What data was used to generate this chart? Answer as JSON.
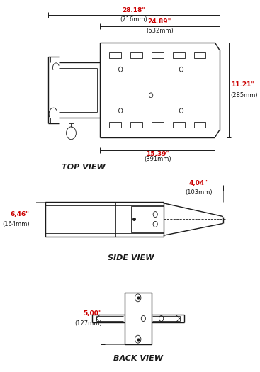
{
  "bg_color": "#ffffff",
  "line_color": "#1a1a1a",
  "dim_color": "#cc0000",
  "title_top_view": "TOP VIEW",
  "title_side_view": "SIDE VIEW",
  "title_back_view": "BACK VIEW",
  "dim_28_18": "28.18\"",
  "dim_716": "(716mm)",
  "dim_24_89": "24.89\"",
  "dim_632": "(632mm)",
  "dim_11_21": "11.21\"",
  "dim_285": "(285mm)",
  "dim_15_39": "15.39\"",
  "dim_391": "(391mm)",
  "dim_4_04": "4,04\"",
  "dim_103": "(103mm)",
  "dim_6_46": "6,46\"",
  "dim_164": "(164mm)",
  "dim_5_00": "5,00\"",
  "dim_127": "(127mm)"
}
